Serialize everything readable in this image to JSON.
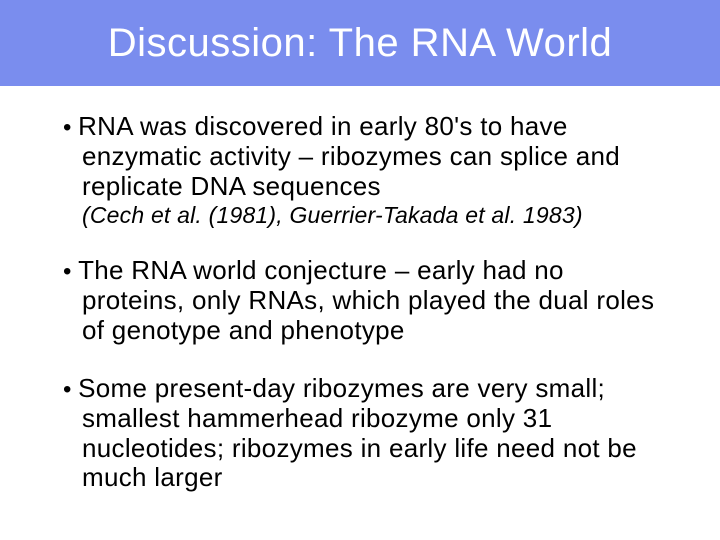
{
  "slide": {
    "header": {
      "title": "Discussion: The RNA World",
      "background_color": "#7a8dee",
      "text_color": "#ffffff",
      "title_fontsize": 40
    },
    "body": {
      "background_color": "#ffffff",
      "text_color": "#000000",
      "bullet_fontsize": 26,
      "citation_fontsize": 23,
      "bullets": [
        {
          "text": "RNA was discovered in early 80's to have enzymatic activity – ribozymes can splice and replicate DNA sequences",
          "citation": "(Cech et al. (1981), Guerrier-Takada et al. 1983)"
        },
        {
          "text": "The RNA world conjecture – early had no proteins, only RNAs, which played the dual roles of genotype and phenotype",
          "citation": null
        },
        {
          "text": " Some present-day ribozymes are very small; smallest hammerhead ribozyme only 31 nucleotides; ribozymes in early life need not be much larger",
          "citation": null
        }
      ]
    }
  }
}
